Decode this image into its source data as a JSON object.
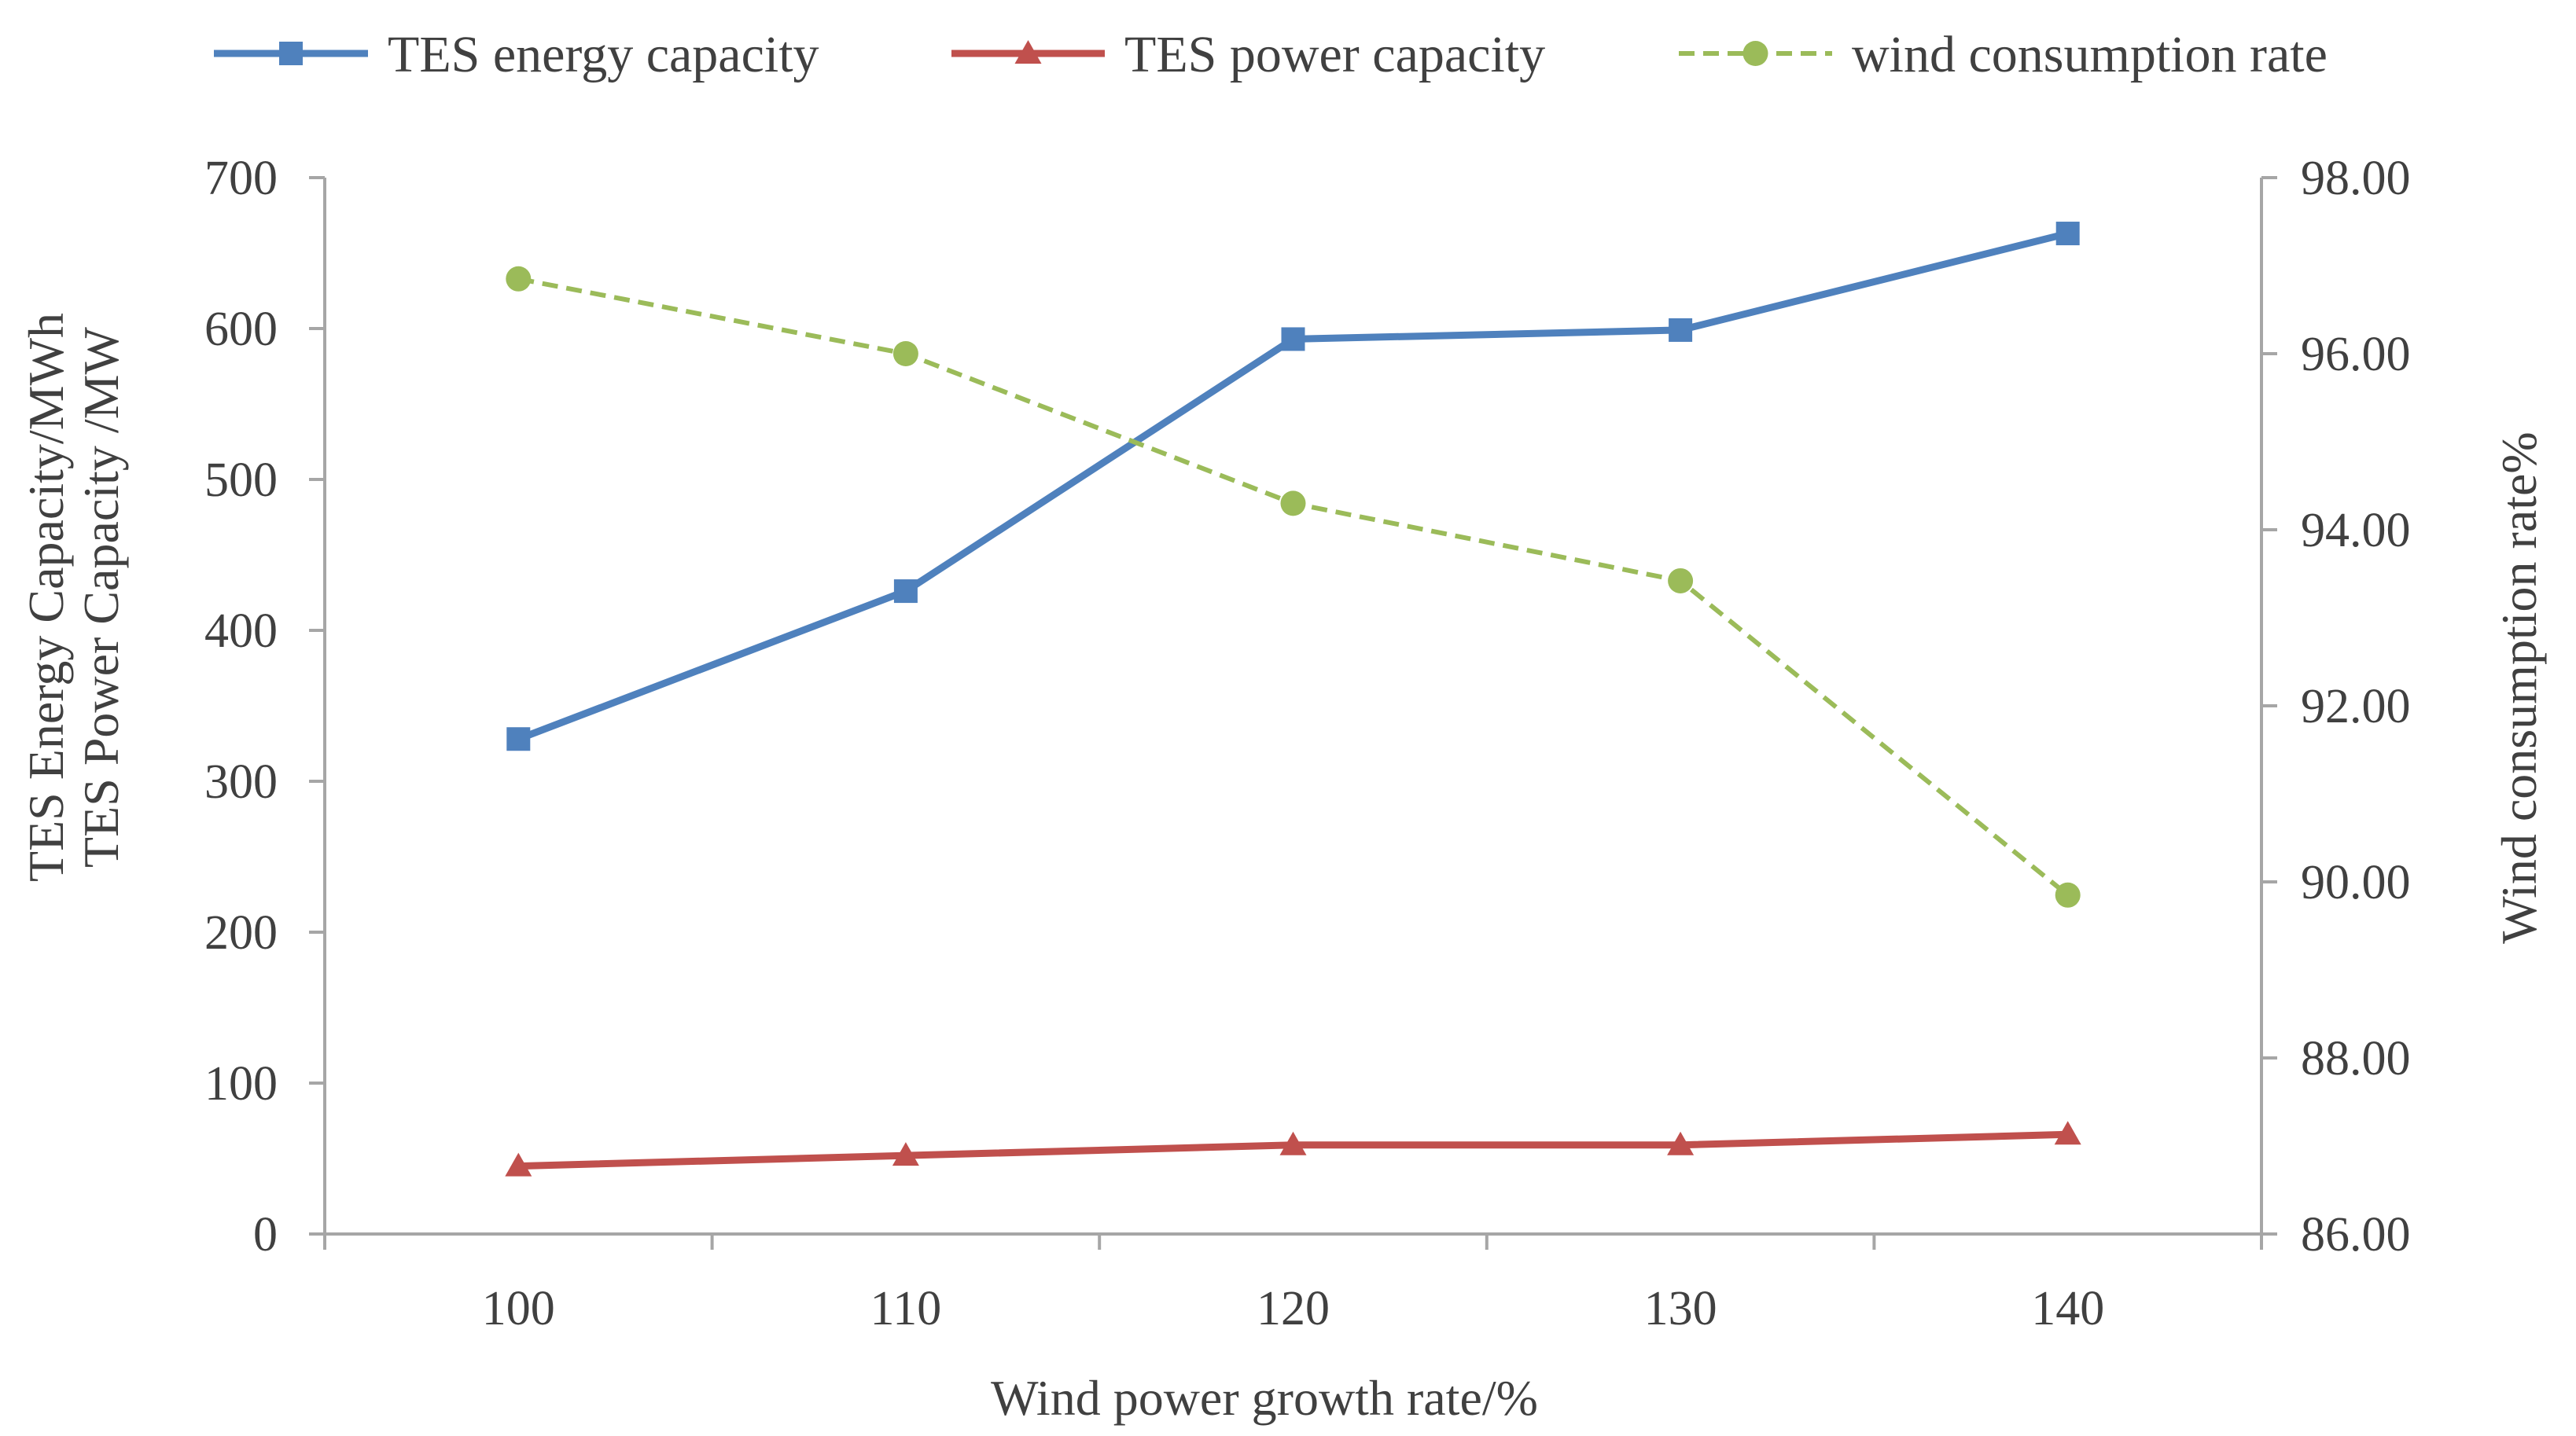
{
  "chart_data": {
    "type": "line",
    "x": [
      100,
      110,
      120,
      130,
      140
    ],
    "xlabel": "Wind power growth rate/%",
    "ylabel_left_lines": [
      "TES Energy Capacity/MWh",
      "TES Power Capacity /MW"
    ],
    "ylabel_right": "Wind consumption rate%",
    "ylim_left": [
      0,
      700
    ],
    "ylim_right": [
      86,
      98
    ],
    "yticks_left": [
      "0",
      "100",
      "200",
      "300",
      "400",
      "500",
      "600",
      "700"
    ],
    "yticks_right": [
      "86.00",
      "88.00",
      "90.00",
      "92.00",
      "94.00",
      "96.00",
      "98.00"
    ],
    "xlim": [
      95,
      145
    ],
    "grid": false,
    "legend_position": "top",
    "series": [
      {
        "name": "TES energy capacity",
        "axis": "left",
        "values": [
          328,
          426,
          593,
          599,
          663
        ],
        "color": "#4f81bd",
        "marker": "square",
        "dash": "solid"
      },
      {
        "name": "TES power capacity",
        "axis": "left",
        "values": [
          45,
          52,
          59,
          59,
          66
        ],
        "color": "#c0504d",
        "marker": "triangle",
        "dash": "solid"
      },
      {
        "name": "wind consumption rate",
        "axis": "right",
        "values": [
          96.85,
          96.0,
          94.3,
          93.42,
          89.85
        ],
        "color": "#9bbb59",
        "marker": "circle",
        "dash": "dashed"
      }
    ]
  }
}
